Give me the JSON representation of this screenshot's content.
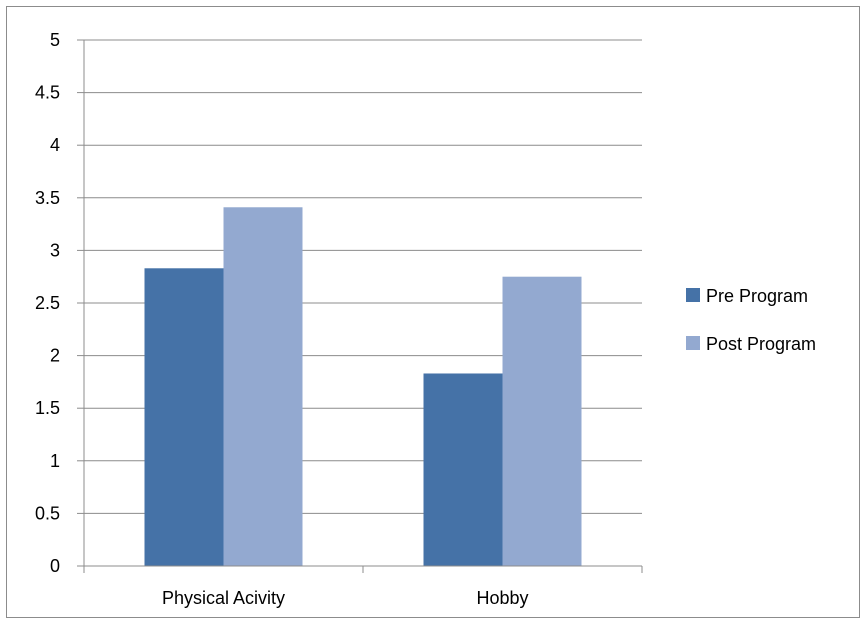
{
  "chart_data": {
    "type": "bar",
    "categories": [
      "Physical Acivity",
      "Hobby"
    ],
    "series": [
      {
        "name": "Pre Program",
        "values": [
          2.83,
          1.83
        ],
        "color": "#4572A7"
      },
      {
        "name": "Post Program",
        "values": [
          3.41,
          2.75
        ],
        "color": "#93A9D0"
      }
    ],
    "ylim": [
      0,
      5
    ],
    "yticks": [
      "0",
      "0.5",
      "1",
      "1.5",
      "2",
      "2.5",
      "3",
      "3.5",
      "4",
      "4.5",
      "5"
    ],
    "grid": true,
    "legend_position": "right",
    "gridline_color": "#8c8c8c",
    "axis_color": "#8c8c8c"
  }
}
